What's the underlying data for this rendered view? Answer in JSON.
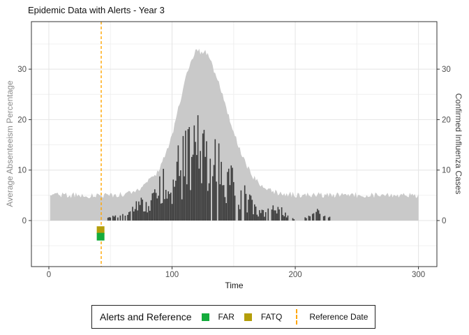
{
  "title": "Epidemic Data with Alerts - Year 3",
  "axes": {
    "x": {
      "label": "Time",
      "ticks": [
        0,
        100,
        200,
        300
      ],
      "minor_ticks": [
        50,
        150,
        250
      ]
    },
    "y_left": {
      "label": "Average Absenteeism Percentage",
      "ticks": [
        0,
        10,
        20,
        30
      ],
      "minor_ticks": [
        -5,
        5,
        15,
        25,
        35
      ]
    },
    "y_right": {
      "label": "Confirmed Influenza Cases",
      "ticks": [
        0,
        10,
        20,
        30
      ]
    }
  },
  "legend": {
    "title": "Alerts and Reference",
    "items": [
      {
        "label": "FAR",
        "swatch": "square",
        "color": "#14ac3c"
      },
      {
        "label": "FATQ",
        "swatch": "square",
        "color": "#b49e0a"
      },
      {
        "label": "Reference Date",
        "swatch": "dashed-line",
        "color": "#ffa500"
      }
    ]
  },
  "chart_data": {
    "type": "composite",
    "title": "Epidemic Data with Alerts - Year 3",
    "xlabel": "Time",
    "ylabel_left": "Average Absenteeism Percentage",
    "ylabel_right": "Confirmed Influenza Cases",
    "x_ticks": [
      0,
      100,
      200,
      300
    ],
    "x_minor": [
      50,
      150,
      250
    ],
    "y_ticks": [
      0,
      10,
      20,
      30
    ],
    "y_minor": [
      -5,
      5,
      15,
      25,
      35
    ],
    "xlim": [
      -14,
      314
    ],
    "ylim": [
      -9.1,
      39.4
    ],
    "grid": true,
    "legend_position": "bottom",
    "random_seed": 20240917,
    "series": [
      {
        "name": "Average Absenteeism Percentage",
        "type": "area",
        "color": "#c9c9c9",
        "x_start": 1,
        "x_end": 300,
        "noise_amplitude": 0.6,
        "anchors": [
          [
            1,
            5
          ],
          [
            50,
            5
          ],
          [
            60,
            5.3
          ],
          [
            68,
            5.8
          ],
          [
            76,
            6.8
          ],
          [
            83,
            8.2
          ],
          [
            89,
            10
          ],
          [
            94,
            12.5
          ],
          [
            99,
            16
          ],
          [
            104,
            21
          ],
          [
            108,
            25
          ],
          [
            112,
            29
          ],
          [
            115,
            31.5
          ],
          [
            118,
            33.2
          ],
          [
            121,
            33.8
          ],
          [
            124,
            33.2
          ],
          [
            127,
            33.8
          ],
          [
            130,
            32.2
          ],
          [
            133,
            30.5
          ],
          [
            137,
            28
          ],
          [
            141,
            25
          ],
          [
            145,
            21.5
          ],
          [
            149,
            18.5
          ],
          [
            153,
            15.5
          ],
          [
            157,
            13
          ],
          [
            161,
            10.8
          ],
          [
            165,
            9
          ],
          [
            169,
            7.8
          ],
          [
            174,
            6.8
          ],
          [
            180,
            6
          ],
          [
            188,
            5.4
          ],
          [
            200,
            5.1
          ],
          [
            300,
            5
          ]
        ]
      },
      {
        "name": "Confirmed Influenza Cases",
        "type": "bar",
        "color": "#3b3b3b",
        "bar_width_units": 0.9,
        "x_start": 45,
        "x_end": 231,
        "multiplier_range": [
          0.25,
          1.1
        ],
        "max_value": 21,
        "envelope_anchors": [
          [
            45,
            0
          ],
          [
            48,
            0.8
          ],
          [
            55,
            1.2
          ],
          [
            62,
            1.5
          ],
          [
            68,
            3
          ],
          [
            75,
            4.5
          ],
          [
            82,
            6
          ],
          [
            90,
            9
          ],
          [
            98,
            12
          ],
          [
            105,
            14
          ],
          [
            112,
            17
          ],
          [
            118,
            19
          ],
          [
            124,
            20
          ],
          [
            128,
            19
          ],
          [
            133,
            17
          ],
          [
            138,
            15
          ],
          [
            143,
            13
          ],
          [
            148,
            11
          ],
          [
            153,
            9
          ],
          [
            158,
            7
          ],
          [
            163,
            5
          ],
          [
            168,
            3.5
          ],
          [
            173,
            2.5
          ],
          [
            178,
            3
          ],
          [
            184,
            3
          ],
          [
            190,
            2.5
          ],
          [
            196,
            1.5
          ],
          [
            200,
            0
          ],
          [
            207,
            0
          ],
          [
            210,
            1.8
          ],
          [
            214,
            2.2
          ],
          [
            218,
            2.4
          ],
          [
            222,
            2
          ],
          [
            226,
            1.5
          ],
          [
            229,
            0.8
          ],
          [
            231,
            0
          ]
        ]
      }
    ],
    "alerts": [
      {
        "name": "FATQ",
        "x": 42,
        "y": -1.9,
        "shape": "square",
        "color": "#b49e0a"
      },
      {
        "name": "FAR",
        "x": 42,
        "y": -3.2,
        "shape": "square",
        "color": "#14ac3c"
      }
    ],
    "reference_line": {
      "x": 42.5,
      "color": "#ffa500",
      "style": "dashed"
    }
  }
}
